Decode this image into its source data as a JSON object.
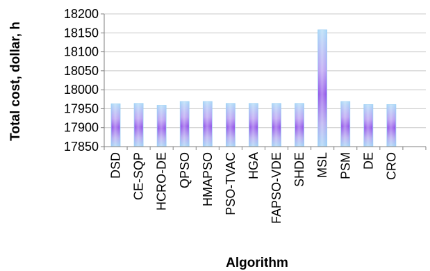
{
  "chart_data": {
    "type": "bar",
    "title": "",
    "xlabel": "Algorithm",
    "ylabel": "Total cost, dollar, h",
    "categories": [
      "DSD",
      "CE-SQP",
      "HCRO-DE",
      "QPSO",
      "HMAPSO",
      "PSO-TVAC",
      "HGA",
      "FAPSO-VDE",
      "SHDE",
      "MSL",
      "PSM",
      "DE",
      "CRO",
      ""
    ],
    "values": [
      17963,
      17964,
      17959,
      17969,
      17969,
      17964,
      17964,
      17964,
      17964,
      18158,
      17969,
      17961,
      17961,
      null
    ],
    "ylim": [
      17850,
      18200
    ],
    "yticks": [
      17850,
      17900,
      17950,
      18000,
      18050,
      18100,
      18150,
      18200
    ],
    "grid": true,
    "legend": "none",
    "colors": {
      "bar_edge": "#9ecff5",
      "bar_center": "#9b5cf0",
      "grid": "#c8c8c8",
      "axis": "#808080"
    }
  }
}
